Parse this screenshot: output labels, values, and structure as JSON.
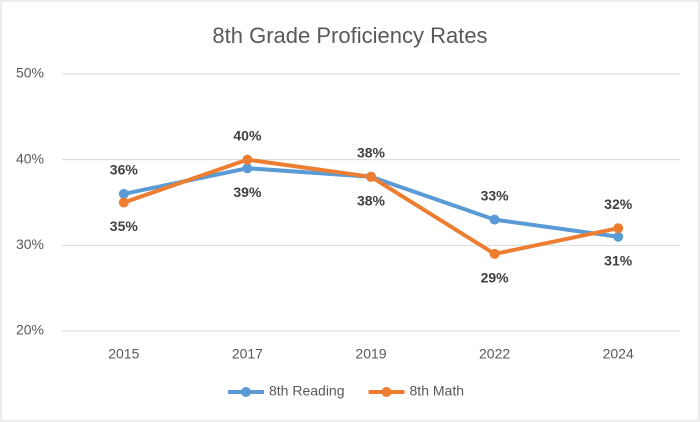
{
  "chart_data": {
    "type": "line",
    "title": "8th Grade Proficiency Rates",
    "categories": [
      "2015",
      "2017",
      "2019",
      "2022",
      "2024"
    ],
    "series": [
      {
        "name": "8th Reading",
        "color": "#5b9bd5",
        "values": [
          36,
          39,
          38,
          33,
          31
        ],
        "value_labels": [
          "36%",
          "39%",
          "38%",
          "33%",
          "31%"
        ]
      },
      {
        "name": "8th Math",
        "color": "#ed7d31",
        "values": [
          35,
          40,
          38,
          29,
          32
        ],
        "value_labels": [
          "35%",
          "40%",
          "38%",
          "29%",
          "32%"
        ]
      }
    ],
    "ylim": [
      20,
      50
    ],
    "yticks": [
      {
        "value": 20,
        "label": "20%"
      },
      {
        "value": 30,
        "label": "30%"
      },
      {
        "value": 40,
        "label": "40%"
      },
      {
        "value": 50,
        "label": "50%"
      }
    ],
    "grid": true
  }
}
